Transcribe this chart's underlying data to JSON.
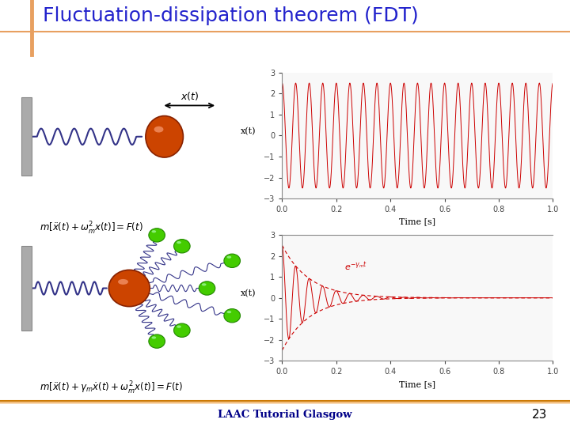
{
  "title": "Fluctuation-dissipation theorem (FDT)",
  "title_color": "#2222cc",
  "title_fontsize": 18,
  "bg_color": "#f8f8f8",
  "slide_bg": "#ffffff",
  "footer_text": "LAAC Tutorial Glasgow",
  "footer_number": "23",
  "plot1_ylabel": "x(t)",
  "plot1_xlabel": "Time [s]",
  "plot1_ylim": [
    -3,
    3
  ],
  "plot1_xlim": [
    0.0,
    1.0
  ],
  "plot1_yticks": [
    -3,
    -2,
    -1,
    0,
    1,
    2,
    3
  ],
  "plot1_xticks": [
    0.0,
    0.2,
    0.4,
    0.6,
    0.8,
    1.0
  ],
  "plot2_ylabel": "x(t)",
  "plot2_xlabel": "Time [s]",
  "plot2_ylim": [
    -3,
    3
  ],
  "plot2_xlim": [
    0.0,
    1.0
  ],
  "plot2_yticks": [
    -3,
    -2,
    -1,
    0,
    1,
    2,
    3
  ],
  "plot2_xticks": [
    0.0,
    0.2,
    0.4,
    0.6,
    0.8,
    1.0
  ],
  "line_color": "#cc0000",
  "envelope_color": "#cc0000",
  "omega_m": 20,
  "gamma_m": 10,
  "eq1": "$m[\\ddot{x}(t) + \\omega_m^2 x(t)] = F(t)$",
  "eq2": "$m[\\ddot{x}(t) + \\gamma_m \\dot{x}(t) + \\omega_m^2 x(t)] = F(t)$",
  "annotation_text": "$e^{-\\gamma_m t}$",
  "header_line_color": "#e8a060",
  "wall_color": "#999999",
  "spring_color": "#333388",
  "mass_color": "#cc4400",
  "bath_color": "#44cc00"
}
